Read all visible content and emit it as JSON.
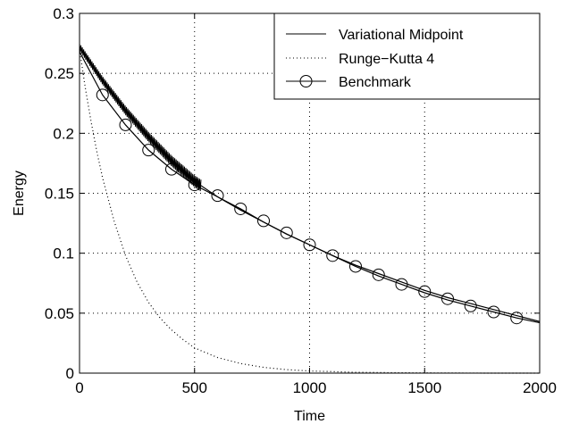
{
  "chart_data": {
    "type": "line",
    "title": "",
    "xlabel": "Time",
    "ylabel": "Energy",
    "xlim": [
      0,
      2000
    ],
    "ylim": [
      0,
      0.3
    ],
    "xticks": [
      0,
      500,
      1000,
      1500,
      2000
    ],
    "yticks": [
      0,
      0.05,
      0.1,
      0.15,
      0.2,
      0.25,
      0.3
    ],
    "xtick_labels": [
      "0",
      "500",
      "1000",
      "1500",
      "2000"
    ],
    "ytick_labels": [
      "0",
      "0.05",
      "0.1",
      "0.15",
      "0.2",
      "0.25",
      "0.3"
    ],
    "grid": true,
    "legend_position": "top-right",
    "series": [
      {
        "name": "Variational Midpoint",
        "style": "solid",
        "color": "#000000",
        "x": [
          0,
          100,
          200,
          300,
          400,
          500,
          600,
          700,
          800,
          900,
          1000,
          1100,
          1200,
          1300,
          1400,
          1500,
          1600,
          1700,
          1800,
          1900,
          2000
        ],
        "y": [
          0.272,
          0.244,
          0.219,
          0.197,
          0.177,
          0.16,
          0.147,
          0.136,
          0.126,
          0.116,
          0.107,
          0.098,
          0.09,
          0.083,
          0.076,
          0.069,
          0.063,
          0.058,
          0.053,
          0.048,
          0.043
        ],
        "oscillation_band": {
          "x_range": [
            0,
            530
          ],
          "amplitude": 0.005
        }
      },
      {
        "name": "Runge−Kutta 4",
        "style": "dotted",
        "color": "#000000",
        "x": [
          0,
          25,
          50,
          75,
          100,
          150,
          200,
          250,
          300,
          350,
          400,
          450,
          500,
          600,
          700,
          800,
          900,
          1000,
          1200,
          1400,
          1600,
          1800,
          2000
        ],
        "y": [
          0.27,
          0.238,
          0.21,
          0.185,
          0.163,
          0.127,
          0.098,
          0.076,
          0.059,
          0.046,
          0.036,
          0.028,
          0.021,
          0.013,
          0.008,
          0.0048,
          0.0029,
          0.0018,
          0.0007,
          0.0003,
          0.0001,
          0.0,
          0.0
        ]
      },
      {
        "name": "Benchmark",
        "style": "solid-circle-markers",
        "color": "#000000",
        "x": [
          0,
          100,
          200,
          300,
          400,
          500,
          600,
          700,
          800,
          900,
          1000,
          1100,
          1200,
          1300,
          1400,
          1500,
          1600,
          1700,
          1800,
          1900,
          2000
        ],
        "y": [
          0.268,
          0.232,
          0.207,
          0.186,
          0.17,
          0.157,
          0.147,
          0.137,
          0.126,
          0.116,
          0.107,
          0.098,
          0.089,
          0.081,
          0.074,
          0.067,
          0.061,
          0.056,
          0.051,
          0.046,
          0.042
        ],
        "marker_x": [
          100,
          200,
          300,
          400,
          500,
          600,
          700,
          800,
          900,
          1000,
          1100,
          1200,
          1300,
          1400,
          1500,
          1600,
          1700,
          1800,
          1900
        ],
        "marker_y": [
          0.232,
          0.207,
          0.186,
          0.17,
          0.157,
          0.148,
          0.137,
          0.127,
          0.117,
          0.107,
          0.098,
          0.089,
          0.082,
          0.074,
          0.068,
          0.062,
          0.056,
          0.051,
          0.046
        ]
      }
    ]
  }
}
